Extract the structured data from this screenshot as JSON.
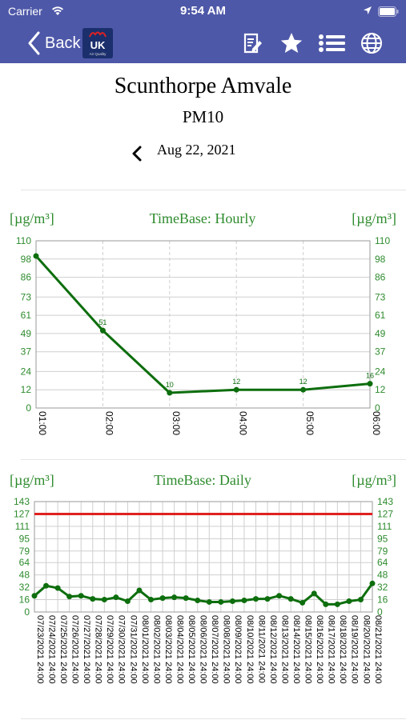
{
  "status_bar": {
    "carrier": "Carrier",
    "time": "9:54 AM"
  },
  "nav": {
    "back_label": "Back",
    "logo_text": "UK",
    "logo_subtext": "Air Quality"
  },
  "header": {
    "station": "Scunthorpe Amvale",
    "pollutant": "PM10",
    "date": "Aug 22, 2021"
  },
  "colors": {
    "nav_bg": "#4e58a8",
    "series": "#0d6e0d",
    "label_green": "#2e8b2e",
    "limit_line": "#e02020"
  },
  "charts": [
    {
      "unit_left": "[µg/m³]",
      "unit_right": "[µg/m³]",
      "title": "TimeBase: Hourly",
      "chart_data": {
        "type": "line",
        "categories": [
          "01:00",
          "02:00",
          "03:00",
          "04:00",
          "05:00",
          "06:00"
        ],
        "values": [
          100,
          51,
          10,
          12,
          12,
          16
        ],
        "point_labels": [
          "",
          "51",
          "10",
          "12",
          "12",
          "16"
        ],
        "yticks": [
          0,
          12,
          24,
          37,
          49,
          61,
          73,
          86,
          98,
          110
        ],
        "ylim": [
          0,
          110
        ],
        "grid": true
      }
    },
    {
      "unit_left": "[µg/m³]",
      "unit_right": "[µg/m³]",
      "title": "TimeBase: Daily",
      "chart_data": {
        "type": "line",
        "categories": [
          "07/23/2021 24:00",
          "07/24/2021 24:00",
          "07/25/2021 24:00",
          "07/26/2021 24:00",
          "07/27/2021 24:00",
          "07/28/2021 24:00",
          "07/29/2021 24:00",
          "07/30/2021 24:00",
          "07/31/2021 24:00",
          "08/01/2021 24:00",
          "08/02/2021 24:00",
          "08/03/2021 24:00",
          "08/04/2021 24:00",
          "08/05/2021 24:00",
          "08/06/2021 24:00",
          "08/07/2021 24:00",
          "08/08/2021 24:00",
          "08/09/2021 24:00",
          "08/10/2021 24:00",
          "08/11/2021 24:00",
          "08/12/2021 24:00",
          "08/13/2021 24:00",
          "08/14/2021 24:00",
          "08/15/2021 24:00",
          "08/16/2021 24:00",
          "08/17/2021 24:00",
          "08/18/2021 24:00",
          "08/19/2021 24:00",
          "08/20/2021 24:00",
          "08/21/2021 24:00"
        ],
        "values": [
          21,
          34,
          31,
          20,
          21,
          17,
          16,
          19,
          14,
          28,
          16,
          18,
          19,
          18,
          15,
          13,
          13,
          14,
          15,
          17,
          17,
          21,
          17,
          12,
          24,
          10,
          10,
          14,
          16,
          37
        ],
        "limit": 127,
        "yticks": [
          0,
          16,
          32,
          48,
          64,
          79,
          95,
          111,
          127,
          143
        ],
        "ylim": [
          0,
          143
        ],
        "grid": true
      }
    }
  ]
}
